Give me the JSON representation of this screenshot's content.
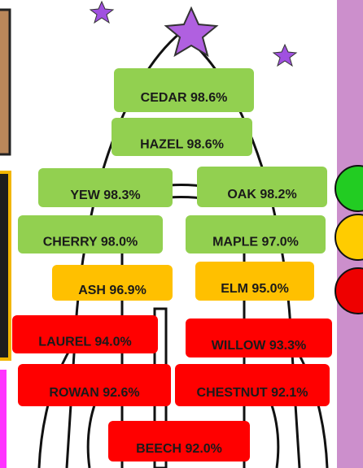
{
  "items": [
    {
      "label": "CEDAR 98.6%",
      "color": "#92d050"
    },
    {
      "label": "HAZEL 98.6%",
      "color": "#92d050"
    },
    {
      "label": "YEW 98.3%",
      "color": "#92d050"
    },
    {
      "label": "OAK 98.2%",
      "color": "#92d050"
    },
    {
      "label": "CHERRY 98.0%",
      "color": "#92d050"
    },
    {
      "label": "MAPLE 97.0%",
      "color": "#92d050"
    },
    {
      "label": "ASH 96.9%",
      "color": "#ffc000"
    },
    {
      "label": "ELM 95.0%",
      "color": "#ffc000"
    },
    {
      "label": "LAUREL 94.0%",
      "color": "#ff0000"
    },
    {
      "label": "WILLOW 93.3%",
      "color": "#ff0000"
    },
    {
      "label": "ROWAN 92.6%",
      "color": "#ff0000"
    },
    {
      "label": "CHESTNUT 92.1%",
      "color": "#ff0000"
    },
    {
      "label": "BEECH 92.0%",
      "color": "#ff0000"
    }
  ]
}
